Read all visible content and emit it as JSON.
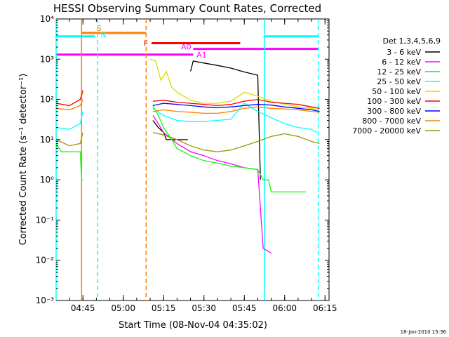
{
  "chart_data": {
    "type": "line",
    "title": "HESSI Observing Summary Count Rates, Corrected",
    "xlabel": "Start Time (08-Nov-04 04:35:02)",
    "ylabel": "Corrected Count Rate (s⁻¹ detector⁻¹)",
    "y_scale": "log",
    "xlim": [
      "04:35:02",
      "06:16:30"
    ],
    "ylim": [
      0.001,
      10000
    ],
    "x_ticks": [
      "04:45",
      "05:00",
      "05:15",
      "05:30",
      "05:45",
      "06:00",
      "06:15"
    ],
    "y_ticks": [
      "10⁻³",
      "10⁻²",
      "10⁻¹",
      "10⁰",
      "10¹",
      "10²",
      "10³",
      "10⁴"
    ],
    "legend_title": "Det 1,3,4,5,6,9",
    "legend_position": "right",
    "timestamp": "18-Jan-2010 15:36",
    "series": [
      {
        "name": "3 - 6 keV",
        "color": "#000000",
        "points": [
          [
            "05:11",
            30
          ],
          [
            "05:13",
            20
          ],
          [
            "05:15",
            15
          ],
          [
            "05:16",
            10
          ],
          [
            "05:18",
            10
          ],
          [
            "05:20",
            10
          ],
          [
            "05:22",
            10
          ],
          [
            "05:24",
            10
          ]
        ]
      },
      {
        "name": "3 - 6 keV",
        "color": "#000000",
        "points": [
          [
            "05:25",
            500
          ],
          [
            "05:26",
            900
          ],
          [
            "05:30",
            800
          ],
          [
            "05:35",
            700
          ],
          [
            "05:40",
            600
          ],
          [
            "05:45",
            480
          ],
          [
            "05:50",
            400
          ],
          [
            "05:51",
            1
          ]
        ]
      },
      {
        "name": "6 - 12 keV",
        "color": "#ff00ff",
        "points": [
          [
            "05:11",
            40
          ],
          [
            "05:13",
            25
          ],
          [
            "05:15",
            15
          ],
          [
            "05:20",
            8
          ],
          [
            "05:25",
            5
          ],
          [
            "05:30",
            4
          ],
          [
            "05:35",
            3
          ],
          [
            "05:40",
            2.5
          ],
          [
            "05:45",
            2
          ],
          [
            "05:50",
            1.8
          ],
          [
            "05:52",
            0.02
          ],
          [
            "05:55",
            0.015
          ]
        ]
      },
      {
        "name": "12 - 25 keV",
        "color": "#00ff00",
        "points": [
          [
            "04:35:02",
            8
          ],
          [
            "04:37",
            5
          ],
          [
            "04:40",
            5
          ],
          [
            "04:44",
            5
          ],
          [
            "04:44:30",
            1
          ],
          [
            "04:45",
            1
          ]
        ]
      },
      {
        "name": "12 - 25 keV",
        "color": "#00ff00",
        "points": [
          [
            "05:11",
            70
          ],
          [
            "05:13",
            40
          ],
          [
            "05:15",
            20
          ],
          [
            "05:18",
            10
          ],
          [
            "05:20",
            6
          ],
          [
            "05:25",
            4
          ],
          [
            "05:30",
            3
          ],
          [
            "05:35",
            2.6
          ],
          [
            "05:40",
            2.2
          ],
          [
            "05:45",
            2
          ],
          [
            "05:50",
            1.8
          ],
          [
            "05:52",
            1
          ],
          [
            "05:54",
            1
          ],
          [
            "05:55",
            0.5
          ],
          [
            "06:08",
            0.5
          ]
        ]
      },
      {
        "name": "25 - 50 keV",
        "color": "#00ffff",
        "points": [
          [
            "04:35:02",
            20
          ],
          [
            "04:40",
            18
          ],
          [
            "04:44",
            25
          ],
          [
            "04:45",
            50
          ]
        ]
      },
      {
        "name": "25 - 50 keV",
        "color": "#00ffff",
        "points": [
          [
            "05:11",
            60
          ],
          [
            "05:15",
            40
          ],
          [
            "05:20",
            30
          ],
          [
            "05:25",
            28
          ],
          [
            "05:30",
            28
          ],
          [
            "05:35",
            30
          ],
          [
            "05:40",
            32
          ],
          [
            "05:45",
            80
          ],
          [
            "05:50",
            50
          ],
          [
            "05:55",
            35
          ],
          [
            "06:00",
            25
          ],
          [
            "06:05",
            20
          ],
          [
            "06:10",
            18
          ],
          [
            "06:12",
            15
          ]
        ]
      },
      {
        "name": "50 - 100 keV",
        "color": "#dddd00",
        "points": [
          [
            "04:35:02",
            80
          ],
          [
            "04:40",
            70
          ],
          [
            "04:44",
            100
          ],
          [
            "04:45",
            150
          ]
        ]
      },
      {
        "name": "50 - 100 keV",
        "color": "#dddd00",
        "points": [
          [
            "05:10",
            1000
          ],
          [
            "05:12",
            900
          ],
          [
            "05:14",
            300
          ],
          [
            "05:16",
            500
          ],
          [
            "05:18",
            200
          ],
          [
            "05:20",
            150
          ],
          [
            "05:25",
            95
          ],
          [
            "05:30",
            80
          ],
          [
            "05:35",
            80
          ],
          [
            "05:40",
            90
          ],
          [
            "05:45",
            150
          ],
          [
            "05:50",
            120
          ],
          [
            "05:55",
            90
          ],
          [
            "06:00",
            75
          ],
          [
            "06:05",
            65
          ],
          [
            "06:10",
            60
          ],
          [
            "06:13",
            55
          ]
        ]
      },
      {
        "name": "100 - 300 keV",
        "color": "#ff0000",
        "points": [
          [
            "04:35:02",
            80
          ],
          [
            "04:40",
            70
          ],
          [
            "04:44",
            100
          ],
          [
            "04:45",
            170
          ]
        ]
      },
      {
        "name": "100 - 300 keV",
        "color": "#ff0000",
        "points": [
          [
            "05:11",
            90
          ],
          [
            "05:15",
            95
          ],
          [
            "05:20",
            85
          ],
          [
            "05:25",
            80
          ],
          [
            "05:30",
            75
          ],
          [
            "05:35",
            70
          ],
          [
            "05:40",
            75
          ],
          [
            "05:45",
            90
          ],
          [
            "05:50",
            100
          ],
          [
            "05:55",
            85
          ],
          [
            "06:00",
            80
          ],
          [
            "06:05",
            75
          ],
          [
            "06:10",
            65
          ],
          [
            "06:13",
            60
          ]
        ]
      },
      {
        "name": "300 - 800 keV",
        "color": "#0000ff",
        "points": [
          [
            "05:11",
            70
          ],
          [
            "05:15",
            80
          ],
          [
            "05:20",
            75
          ],
          [
            "05:25",
            70
          ],
          [
            "05:30",
            65
          ],
          [
            "05:35",
            62
          ],
          [
            "05:40",
            65
          ],
          [
            "05:45",
            70
          ],
          [
            "05:50",
            75
          ],
          [
            "05:55",
            72
          ],
          [
            "06:00",
            65
          ],
          [
            "06:05",
            60
          ],
          [
            "06:10",
            55
          ],
          [
            "06:13",
            50
          ]
        ]
      },
      {
        "name": "800 - 7000 keV",
        "color": "#ff8000",
        "points": [
          [
            "04:35:02",
            60
          ],
          [
            "04:40",
            55
          ],
          [
            "04:44",
            70
          ],
          [
            "04:45",
            100
          ]
        ]
      },
      {
        "name": "800 - 7000 keV",
        "color": "#ff8000",
        "points": [
          [
            "05:11",
            50
          ],
          [
            "05:15",
            55
          ],
          [
            "05:20",
            50
          ],
          [
            "05:25",
            48
          ],
          [
            "05:30",
            45
          ],
          [
            "05:35",
            45
          ],
          [
            "05:40",
            50
          ],
          [
            "05:45",
            60
          ],
          [
            "05:50",
            65
          ],
          [
            "05:55",
            60
          ],
          [
            "06:00",
            58
          ],
          [
            "06:05",
            55
          ],
          [
            "06:10",
            50
          ],
          [
            "06:13",
            48
          ]
        ]
      },
      {
        "name": "7000 - 20000 keV",
        "color": "#999900",
        "points": [
          [
            "04:35:02",
            10
          ],
          [
            "04:40",
            7
          ],
          [
            "04:44",
            8
          ],
          [
            "04:45",
            15
          ]
        ]
      },
      {
        "name": "7000 - 20000 keV",
        "color": "#999900",
        "points": [
          [
            "05:11",
            15
          ],
          [
            "05:15",
            13
          ],
          [
            "05:20",
            10
          ],
          [
            "05:25",
            7
          ],
          [
            "05:30",
            5.5
          ],
          [
            "05:35",
            5
          ],
          [
            "05:40",
            5.5
          ],
          [
            "05:45",
            7
          ],
          [
            "05:50",
            9
          ],
          [
            "05:55",
            12
          ],
          [
            "06:00",
            14
          ],
          [
            "06:05",
            12
          ],
          [
            "06:10",
            9
          ],
          [
            "06:13",
            8
          ]
        ]
      }
    ],
    "vertical_markers": [
      {
        "time": "04:35:02",
        "color": "#00ffff",
        "style": "solid"
      },
      {
        "time": "04:44:30",
        "color": "#ff8000",
        "style": "solid"
      },
      {
        "time": "04:50:30",
        "color": "#00ffff",
        "style": "dashed"
      },
      {
        "time": "05:08:30",
        "color": "#ff8000",
        "style": "dashed"
      },
      {
        "time": "05:52:30",
        "color": "#00ffff",
        "style": "solid"
      },
      {
        "time": "06:12:30",
        "color": "#00ffff",
        "style": "dashed"
      }
    ],
    "flag_bars": [
      {
        "label": "S",
        "color": "#ff8000",
        "start": "04:44:30",
        "end": "05:08:30",
        "y": 4500
      },
      {
        "label": "N",
        "color": "#00ffff",
        "start": "04:35:02",
        "end": "04:49:30",
        "y": 3700
      },
      {
        "label": "N",
        "color": "#00ffff",
        "start": "05:52:30",
        "end": "06:12:30",
        "y": 3700
      },
      {
        "label": "F",
        "color": "#ff0000",
        "start": "05:10:30",
        "end": "05:43:30",
        "y": 2500
      },
      {
        "label": "A0",
        "color": "#ff00ff",
        "start": "05:26",
        "end": "06:12:30",
        "y": 1800
      },
      {
        "label": "A1",
        "color": "#ff00ff",
        "start": "04:35:02",
        "end": "05:26",
        "y": 1300
      }
    ]
  }
}
